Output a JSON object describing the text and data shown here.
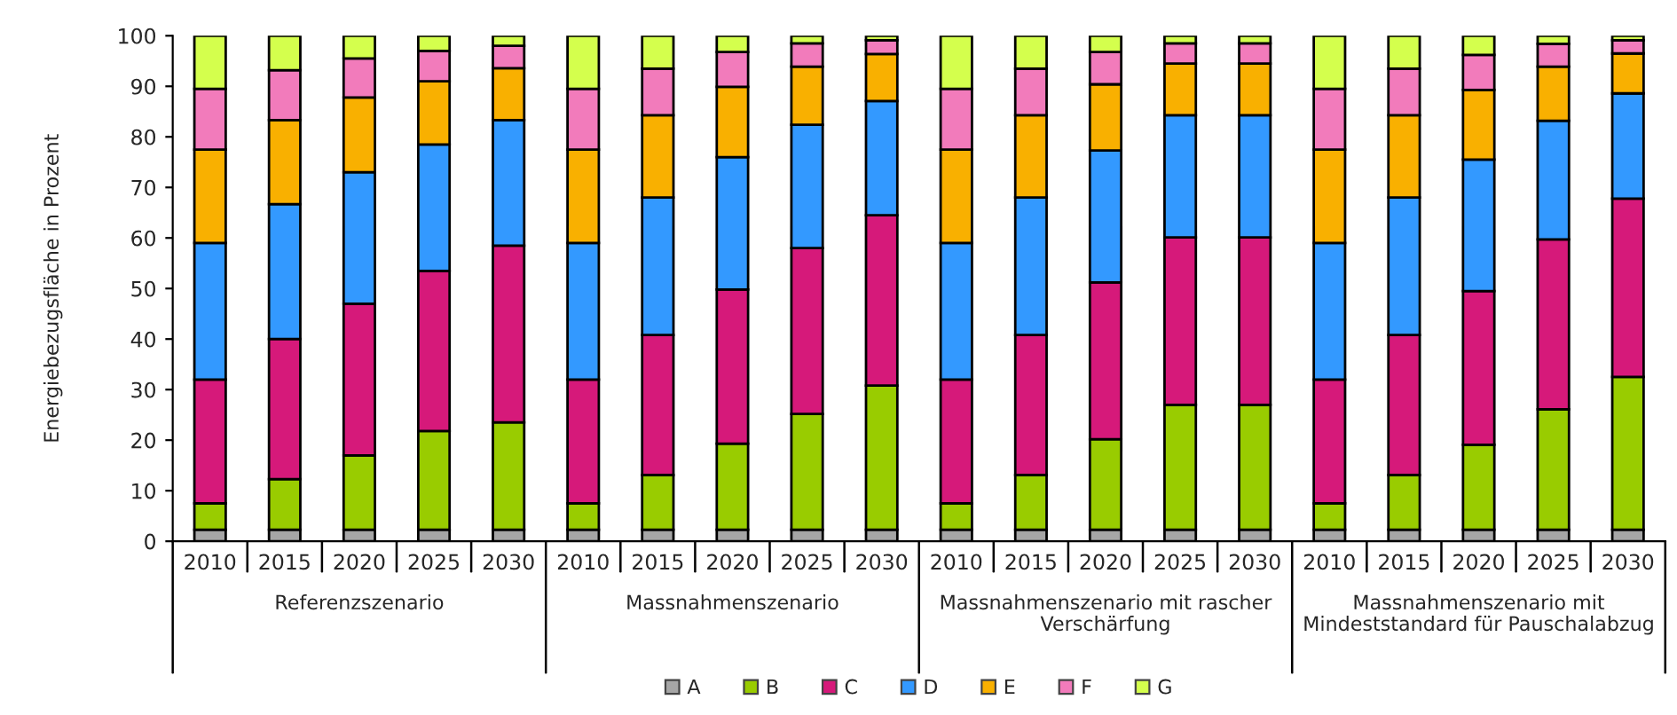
{
  "chart_data": {
    "type": "bar",
    "stacked": true,
    "ylabel": "Energiebezugsfläche in Prozent",
    "categories": [
      "2010",
      "2015",
      "2020",
      "2025",
      "2030",
      "2010",
      "2015",
      "2020",
      "2025",
      "2030",
      "2010",
      "2015",
      "2020",
      "2025",
      "2030",
      "2010",
      "2015",
      "2020",
      "2025",
      "2030"
    ],
    "annotations": [
      "Referenzszenario",
      "Massnahmenszenario",
      "Massnahmenszenario mit rascher\nVerschärfung",
      "Massnahmenszenario mit\nMindeststandard für Pauschalabzug"
    ],
    "ylim": [
      0,
      100
    ],
    "yticks": [
      0,
      10,
      20,
      30,
      40,
      50,
      60,
      70,
      80,
      90,
      100
    ],
    "grid": false,
    "legend": "bottom",
    "series": [
      {
        "name": "A",
        "color": "#a6a6a6",
        "values": [
          2.3,
          2.3,
          2.3,
          2.3,
          2.3,
          2.3,
          2.3,
          2.3,
          2.3,
          2.3,
          2.3,
          2.3,
          2.3,
          2.3,
          2.3,
          2.3,
          2.3,
          2.3,
          2.3,
          2.3
        ]
      },
      {
        "name": "B",
        "color": "#99cc00",
        "values": [
          5.2,
          10,
          14.7,
          19.5,
          21.2,
          5.2,
          10.8,
          17,
          22.9,
          28.5,
          5.2,
          10.8,
          17.9,
          24.7,
          24.7,
          5.2,
          10.8,
          16.8,
          23.8,
          30.2
        ]
      },
      {
        "name": "C",
        "color": "#d6197a",
        "values": [
          24.5,
          27.7,
          30,
          31.7,
          35,
          24.5,
          27.7,
          30.5,
          32.8,
          33.7,
          24.5,
          27.7,
          31,
          33.1,
          33.1,
          24.5,
          27.7,
          30.4,
          33.6,
          35.3
        ]
      },
      {
        "name": "D",
        "color": "#3399ff",
        "values": [
          27,
          26.7,
          26,
          25,
          24.8,
          27,
          27.2,
          26.2,
          24.4,
          22.6,
          27,
          27.2,
          26.1,
          24.2,
          24.2,
          27,
          27.2,
          26,
          23.5,
          20.8
        ]
      },
      {
        "name": "E",
        "color": "#f9b000",
        "values": [
          18.5,
          16.6,
          14.8,
          12.5,
          10.3,
          18.5,
          16.3,
          13.9,
          11.5,
          9.3,
          18.5,
          16.3,
          13.1,
          10.2,
          10.2,
          18.5,
          16.3,
          13.8,
          10.7,
          7.9
        ]
      },
      {
        "name": "F",
        "color": "#f27bbb",
        "values": [
          12,
          9.9,
          7.7,
          6,
          4.4,
          12,
          9.2,
          6.9,
          4.6,
          2.7,
          12,
          9.2,
          6.4,
          4,
          4,
          12,
          9.2,
          6.9,
          4.5,
          2.6
        ]
      },
      {
        "name": "G",
        "color": "#d4ff4d",
        "values": [
          10.5,
          6.8,
          4.5,
          3,
          2,
          10.5,
          6.5,
          3.2,
          1.5,
          0.9,
          10.5,
          6.5,
          3.2,
          1.5,
          1.5,
          10.5,
          6.5,
          3.8,
          1.6,
          0.9
        ]
      }
    ]
  }
}
